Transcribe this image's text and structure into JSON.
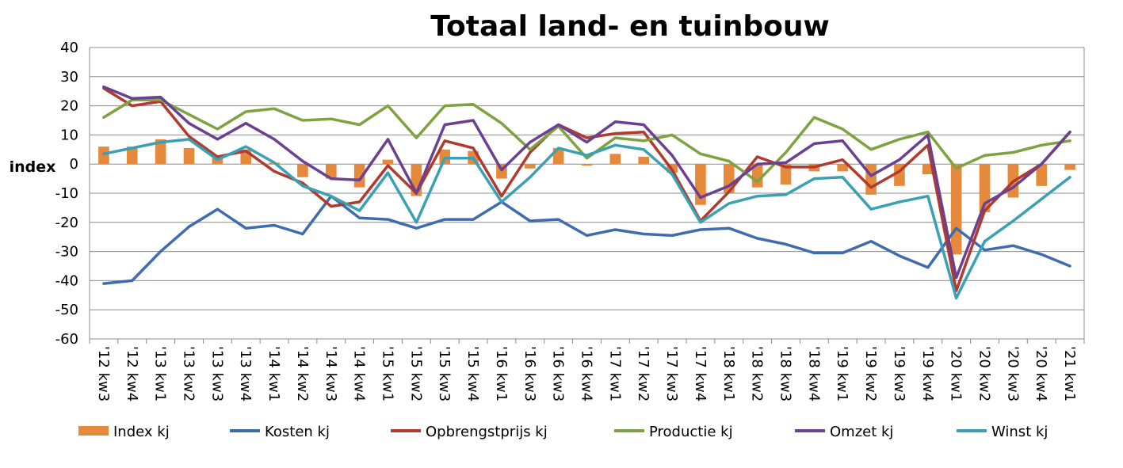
{
  "chart_data": {
    "type": "bar+line",
    "title": "Totaal land- en tuinbouw",
    "ylabel": "index",
    "ylim": [
      -60,
      40
    ],
    "yticks": [
      40,
      30,
      20,
      10,
      0,
      -10,
      -20,
      -30,
      -40,
      -50,
      -60
    ],
    "grid": true,
    "legend_position": "bottom",
    "categories": [
      "'12 kw3",
      "'12 kw4",
      "'13 kw1",
      "'13 kw2",
      "'13 kw3",
      "'13 kw4",
      "'14 kw1",
      "'14 kw2",
      "'14 kw3",
      "'14 kw4",
      "'15 kw1",
      "'15 kw2",
      "'15 kw3",
      "'15 kw4",
      "'16 kw1",
      "'16 kw3",
      "'16 kw3",
      "'16 kw4",
      "'17 kw1",
      "'17 kw2",
      "'17 kw3",
      "'17 kw4",
      "'18 kw1",
      "'18 kw2",
      "'18 kw3",
      "'18 kw4",
      "'19 kw1",
      "'19 kw2",
      "'19 kw3",
      "'19 kw4",
      "'20 kw1",
      "'20 kw2",
      "'20 kw3",
      "'20 kw4",
      "'21 kw1"
    ],
    "series": [
      {
        "name": "Index kj",
        "kind": "bar",
        "color": "#e58a3c",
        "values": [
          6,
          6,
          8.5,
          5.5,
          2,
          5,
          0.5,
          -4.5,
          -5,
          -8,
          1.5,
          -11,
          5,
          4.5,
          -5,
          -1.5,
          5.5,
          -0.5,
          3.5,
          2.5,
          -3,
          -14,
          -10,
          -8,
          -7,
          -2.5,
          -2.5,
          -10.5,
          -7.5,
          -3.5,
          -31,
          -16.5,
          -11.5,
          -7.5,
          -2
        ]
      },
      {
        "name": "Kosten kj",
        "kind": "line",
        "color": "#3f6cae",
        "values": [
          -41,
          -40,
          -30,
          -21.5,
          -15.5,
          -22,
          -21,
          -24,
          -11,
          -18.5,
          -19,
          -22,
          -19,
          -19,
          -13,
          -19.5,
          -19,
          -24.5,
          -22.5,
          -24,
          -24.5,
          -22.5,
          -22,
          -25.5,
          -27.5,
          -30.5,
          -30.5,
          -26.5,
          -31.5,
          -35.5,
          -22,
          -29.5,
          -28,
          -31,
          -35
        ]
      },
      {
        "name": "Opbrengstprijs kj",
        "kind": "line",
        "color": "#b03a2e",
        "values": [
          26,
          20,
          21.5,
          9.5,
          2.5,
          4.5,
          -2.5,
          -6.5,
          -14.5,
          -13,
          -0.5,
          -10,
          8,
          5.5,
          -11,
          4,
          13.5,
          9,
          10.5,
          11,
          -2,
          -19.5,
          -9.5,
          2.5,
          -1,
          -1,
          1.5,
          -8,
          -2.5,
          6.5,
          -43.5,
          -16,
          -6,
          0,
          11
        ]
      },
      {
        "name": "Productie kj",
        "kind": "line",
        "color": "#7ea23f",
        "values": [
          16,
          22,
          22,
          17,
          12,
          18,
          19,
          15,
          15.5,
          13.5,
          20,
          9,
          20,
          20.5,
          14,
          5,
          13,
          2,
          9,
          8,
          10,
          3.5,
          1,
          -6,
          4,
          16,
          12,
          5,
          8.5,
          11,
          -1.5,
          3,
          4,
          6.5,
          8
        ]
      },
      {
        "name": "Omzet kj",
        "kind": "line",
        "color": "#6b4090",
        "values": [
          26.5,
          22.5,
          23,
          14,
          8.5,
          14,
          8.5,
          1,
          -5,
          -5.5,
          8.5,
          -10,
          13.5,
          15,
          -2,
          7.5,
          13.5,
          7.5,
          14.5,
          13.5,
          3,
          -11.5,
          -7.5,
          0,
          0.5,
          7,
          8,
          -4,
          1.5,
          10,
          -39,
          -13.5,
          -8,
          0,
          11
        ]
      },
      {
        "name": "Winst kj",
        "kind": "line",
        "color": "#3aa0b4",
        "values": [
          3.5,
          5.5,
          7.5,
          8.5,
          1.5,
          6,
          0.5,
          -7.5,
          -11,
          -16,
          -3,
          -20,
          2,
          2,
          -13,
          -4.5,
          5.5,
          3,
          6.5,
          5,
          -3.5,
          -20,
          -13.5,
          -11,
          -10.5,
          -5,
          -4.5,
          -15.5,
          -13,
          -11,
          -46,
          -26.5,
          -19.5,
          -12,
          -4.5
        ]
      }
    ]
  }
}
